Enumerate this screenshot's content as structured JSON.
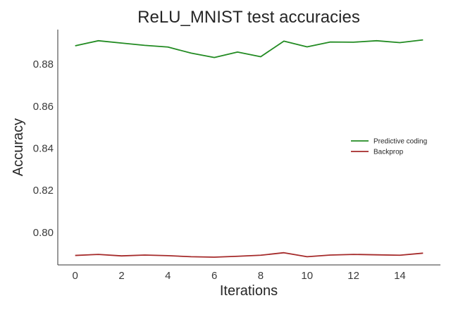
{
  "chart_data": {
    "type": "line",
    "title": "ReLU_MNIST test accuracies",
    "xlabel": "Iterations",
    "ylabel": "Accuracy",
    "xlim": [
      -0.75,
      15.75
    ],
    "ylim": [
      0.7845,
      0.8965
    ],
    "xticks": [
      0,
      2,
      4,
      6,
      8,
      10,
      12,
      14
    ],
    "yticks": [
      0.8,
      0.82,
      0.84,
      0.86,
      0.88
    ],
    "ytick_labels": [
      "0.80",
      "0.82",
      "0.84",
      "0.86",
      "0.88"
    ],
    "grid": false,
    "legend_position": "center-right",
    "x": [
      0,
      1,
      2,
      3,
      4,
      5,
      6,
      7,
      8,
      9,
      10,
      11,
      12,
      13,
      14,
      15
    ],
    "series": [
      {
        "name": "Predictive coding",
        "color": "#228b22",
        "values": [
          0.8888,
          0.8912,
          0.8901,
          0.889,
          0.8882,
          0.8853,
          0.8832,
          0.8858,
          0.8836,
          0.891,
          0.8883,
          0.8906,
          0.8905,
          0.8912,
          0.8903,
          0.8916
        ]
      },
      {
        "name": "Backprop",
        "color": "#a52a2a",
        "values": [
          0.789,
          0.7895,
          0.7888,
          0.7892,
          0.7889,
          0.7884,
          0.7882,
          0.7886,
          0.7891,
          0.7903,
          0.7884,
          0.7892,
          0.7895,
          0.7893,
          0.7891,
          0.7901
        ]
      }
    ]
  }
}
